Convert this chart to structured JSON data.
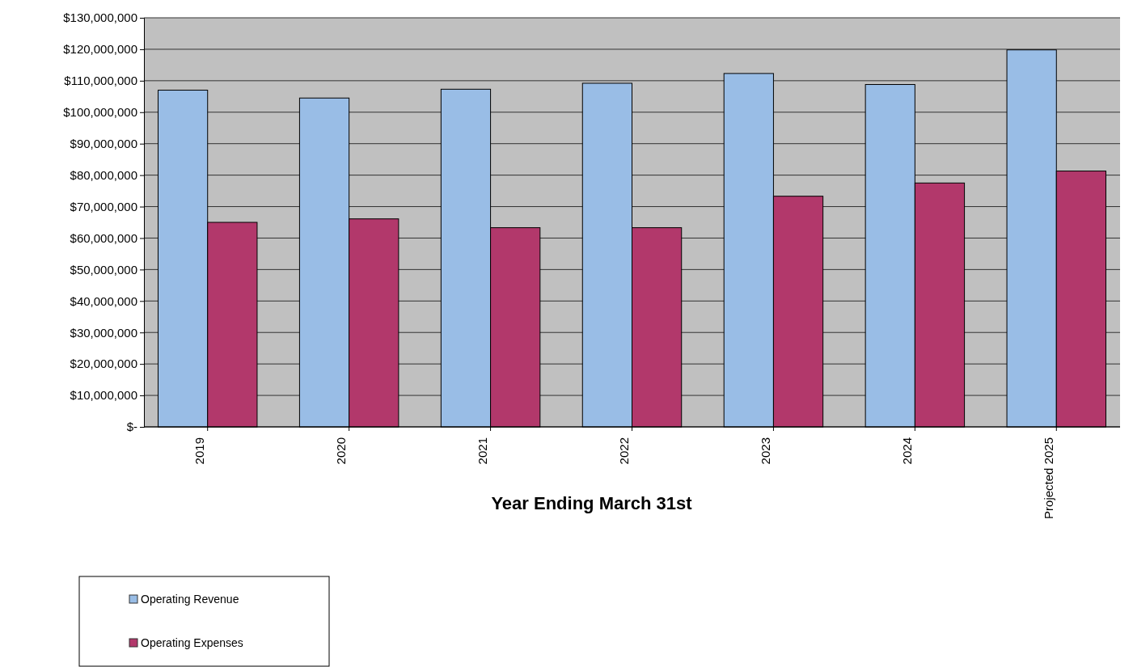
{
  "chart_data": {
    "type": "bar",
    "xlabel": "Year Ending March 31st",
    "categories": [
      "2019",
      "2020",
      "2021",
      "2022",
      "2023",
      "2024",
      "Projected 2025"
    ],
    "series": [
      {
        "name": "Operating Revenue",
        "color": "#99bde6",
        "values": [
          107000000,
          104500000,
          107300000,
          109200000,
          112300000,
          108800000,
          119800000
        ]
      },
      {
        "name": "Operating Expenses",
        "color": "#b2386b",
        "values": [
          65000000,
          66100000,
          63300000,
          63300000,
          73300000,
          77500000,
          81300000
        ]
      }
    ],
    "ylim": [
      0,
      130000000
    ],
    "yticks": [
      {
        "value": 0,
        "label": "$-"
      },
      {
        "value": 10000000,
        "label": "$10,000,000"
      },
      {
        "value": 20000000,
        "label": "$20,000,000"
      },
      {
        "value": 30000000,
        "label": "$30,000,000"
      },
      {
        "value": 40000000,
        "label": "$40,000,000"
      },
      {
        "value": 50000000,
        "label": "$50,000,000"
      },
      {
        "value": 60000000,
        "label": "$60,000,000"
      },
      {
        "value": 70000000,
        "label": "$70,000,000"
      },
      {
        "value": 80000000,
        "label": "$80,000,000"
      },
      {
        "value": 90000000,
        "label": "$90,000,000"
      },
      {
        "value": 100000000,
        "label": "$100,000,000"
      },
      {
        "value": 110000000,
        "label": "$110,000,000"
      },
      {
        "value": 120000000,
        "label": "$120,000,000"
      },
      {
        "value": 130000000,
        "label": "$130,000,000"
      }
    ],
    "grid": "y",
    "legend": "bottom left"
  }
}
